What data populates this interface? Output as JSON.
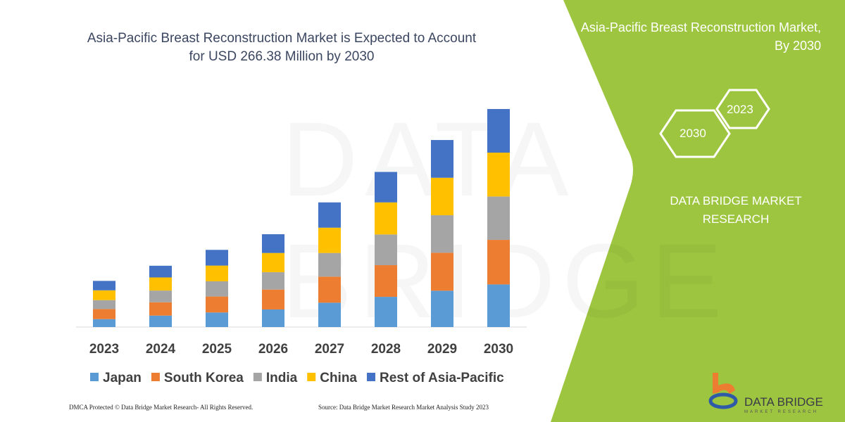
{
  "header": {
    "title": "Asia-Pacific Breast Reconstruction Market is Expected to Account for USD 266.38 Million by 2030"
  },
  "side_panel": {
    "title": "Asia-Pacific Breast Reconstruction Market, By 2030",
    "hex_years": [
      "2030",
      "2023"
    ],
    "brand_text": "DATA BRIDGE MARKET RESEARCH",
    "bg_color": "#9dc53f"
  },
  "logo": {
    "name": "DATA BRIDGE",
    "sub": "MARKET RESEARCH"
  },
  "watermark": "DATA BRIDGE",
  "footer": {
    "left": "DMCA Protected © Data Bridge Market Research-  All Rights Reserved.",
    "right": "Source: Data Bridge Market Research  Market Analysis Study 2023"
  },
  "chart_data": {
    "type": "bar",
    "stacked": true,
    "title": "",
    "xlabel": "",
    "ylabel": "",
    "ylim": [
      0,
      270
    ],
    "grid": false,
    "legend_position": "bottom",
    "categories": [
      "2023",
      "2024",
      "2025",
      "2026",
      "2027",
      "2028",
      "2029",
      "2030"
    ],
    "series": [
      {
        "name": "Japan",
        "color": "#5b9bd5",
        "values": [
          9.7,
          14.0,
          17.8,
          21.5,
          29.8,
          36.9,
          44.4,
          52.1
        ]
      },
      {
        "name": "South Korea",
        "color": "#ed7d31",
        "values": [
          12.3,
          16.3,
          19.5,
          24.3,
          31.8,
          38.7,
          46.4,
          54.4
        ]
      },
      {
        "name": "India",
        "color": "#a5a5a5",
        "values": [
          10.9,
          14.3,
          18.6,
          21.2,
          28.9,
          37.5,
          45.8,
          53.0
        ]
      },
      {
        "name": "China",
        "color": "#ffc000",
        "values": [
          12.0,
          16.0,
          19.2,
          23.5,
          30.9,
          39.2,
          45.8,
          53.6
        ]
      },
      {
        "name": "Rest of Asia-Pacific",
        "color": "#4472c4",
        "values": [
          11.5,
          14.3,
          19.2,
          22.9,
          30.9,
          37.2,
          46.1,
          53.3
        ]
      }
    ]
  }
}
